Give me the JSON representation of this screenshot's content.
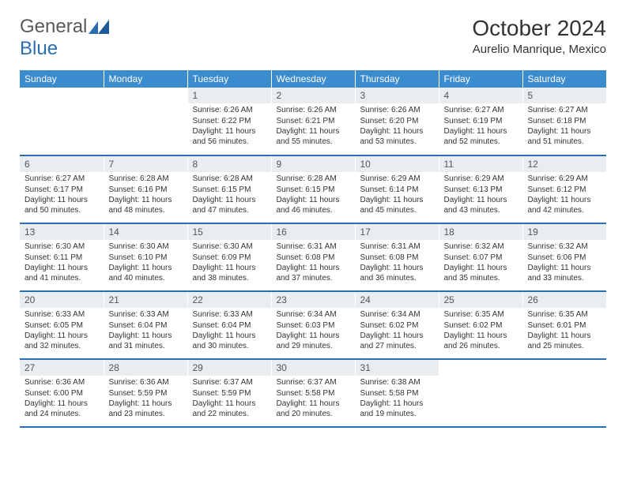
{
  "logo": {
    "text1": "General",
    "text2": "Blue"
  },
  "title": "October 2024",
  "location": "Aurelio Manrique, Mexico",
  "colors": {
    "header_bg": "#3b8bcf",
    "header_text": "#ffffff",
    "daynum_bg": "#e9edf0",
    "rule": "#2b6fb3",
    "logo_gray": "#5a5a5a",
    "logo_blue": "#2b6fb3"
  },
  "day_headers": [
    "Sunday",
    "Monday",
    "Tuesday",
    "Wednesday",
    "Thursday",
    "Friday",
    "Saturday"
  ],
  "weeks": [
    [
      null,
      null,
      {
        "n": "1",
        "sr": "6:26 AM",
        "ss": "6:22 PM",
        "dl": "11 hours and 56 minutes."
      },
      {
        "n": "2",
        "sr": "6:26 AM",
        "ss": "6:21 PM",
        "dl": "11 hours and 55 minutes."
      },
      {
        "n": "3",
        "sr": "6:26 AM",
        "ss": "6:20 PM",
        "dl": "11 hours and 53 minutes."
      },
      {
        "n": "4",
        "sr": "6:27 AM",
        "ss": "6:19 PM",
        "dl": "11 hours and 52 minutes."
      },
      {
        "n": "5",
        "sr": "6:27 AM",
        "ss": "6:18 PM",
        "dl": "11 hours and 51 minutes."
      }
    ],
    [
      {
        "n": "6",
        "sr": "6:27 AM",
        "ss": "6:17 PM",
        "dl": "11 hours and 50 minutes."
      },
      {
        "n": "7",
        "sr": "6:28 AM",
        "ss": "6:16 PM",
        "dl": "11 hours and 48 minutes."
      },
      {
        "n": "8",
        "sr": "6:28 AM",
        "ss": "6:15 PM",
        "dl": "11 hours and 47 minutes."
      },
      {
        "n": "9",
        "sr": "6:28 AM",
        "ss": "6:15 PM",
        "dl": "11 hours and 46 minutes."
      },
      {
        "n": "10",
        "sr": "6:29 AM",
        "ss": "6:14 PM",
        "dl": "11 hours and 45 minutes."
      },
      {
        "n": "11",
        "sr": "6:29 AM",
        "ss": "6:13 PM",
        "dl": "11 hours and 43 minutes."
      },
      {
        "n": "12",
        "sr": "6:29 AM",
        "ss": "6:12 PM",
        "dl": "11 hours and 42 minutes."
      }
    ],
    [
      {
        "n": "13",
        "sr": "6:30 AM",
        "ss": "6:11 PM",
        "dl": "11 hours and 41 minutes."
      },
      {
        "n": "14",
        "sr": "6:30 AM",
        "ss": "6:10 PM",
        "dl": "11 hours and 40 minutes."
      },
      {
        "n": "15",
        "sr": "6:30 AM",
        "ss": "6:09 PM",
        "dl": "11 hours and 38 minutes."
      },
      {
        "n": "16",
        "sr": "6:31 AM",
        "ss": "6:08 PM",
        "dl": "11 hours and 37 minutes."
      },
      {
        "n": "17",
        "sr": "6:31 AM",
        "ss": "6:08 PM",
        "dl": "11 hours and 36 minutes."
      },
      {
        "n": "18",
        "sr": "6:32 AM",
        "ss": "6:07 PM",
        "dl": "11 hours and 35 minutes."
      },
      {
        "n": "19",
        "sr": "6:32 AM",
        "ss": "6:06 PM",
        "dl": "11 hours and 33 minutes."
      }
    ],
    [
      {
        "n": "20",
        "sr": "6:33 AM",
        "ss": "6:05 PM",
        "dl": "11 hours and 32 minutes."
      },
      {
        "n": "21",
        "sr": "6:33 AM",
        "ss": "6:04 PM",
        "dl": "11 hours and 31 minutes."
      },
      {
        "n": "22",
        "sr": "6:33 AM",
        "ss": "6:04 PM",
        "dl": "11 hours and 30 minutes."
      },
      {
        "n": "23",
        "sr": "6:34 AM",
        "ss": "6:03 PM",
        "dl": "11 hours and 29 minutes."
      },
      {
        "n": "24",
        "sr": "6:34 AM",
        "ss": "6:02 PM",
        "dl": "11 hours and 27 minutes."
      },
      {
        "n": "25",
        "sr": "6:35 AM",
        "ss": "6:02 PM",
        "dl": "11 hours and 26 minutes."
      },
      {
        "n": "26",
        "sr": "6:35 AM",
        "ss": "6:01 PM",
        "dl": "11 hours and 25 minutes."
      }
    ],
    [
      {
        "n": "27",
        "sr": "6:36 AM",
        "ss": "6:00 PM",
        "dl": "11 hours and 24 minutes."
      },
      {
        "n": "28",
        "sr": "6:36 AM",
        "ss": "5:59 PM",
        "dl": "11 hours and 23 minutes."
      },
      {
        "n": "29",
        "sr": "6:37 AM",
        "ss": "5:59 PM",
        "dl": "11 hours and 22 minutes."
      },
      {
        "n": "30",
        "sr": "6:37 AM",
        "ss": "5:58 PM",
        "dl": "11 hours and 20 minutes."
      },
      {
        "n": "31",
        "sr": "6:38 AM",
        "ss": "5:58 PM",
        "dl": "11 hours and 19 minutes."
      },
      null,
      null
    ]
  ],
  "labels": {
    "sunrise": "Sunrise:",
    "sunset": "Sunset:",
    "daylight": "Daylight:"
  }
}
